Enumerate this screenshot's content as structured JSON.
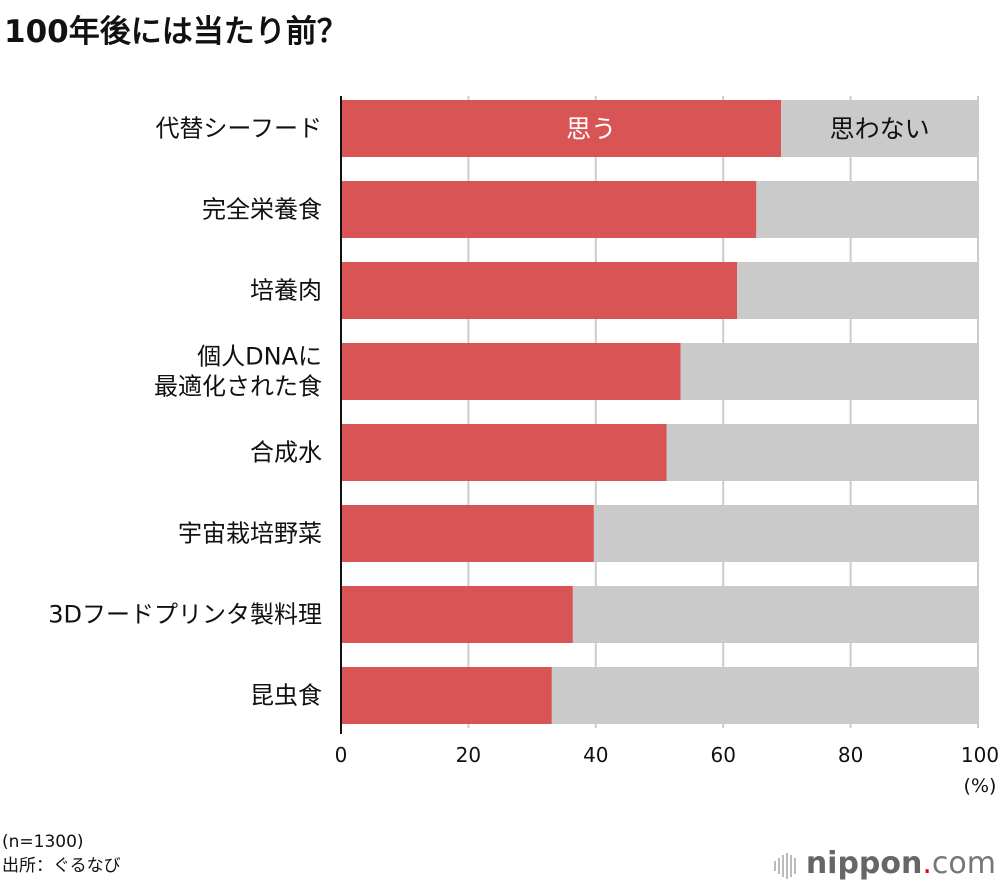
{
  "title": "100年後には当たり前？",
  "chart_data": {
    "type": "bar",
    "orientation": "horizontal",
    "stacked": true,
    "categories": [
      "代替シーフード",
      "完全栄養食",
      "培養肉",
      "個人DNAに\n最適化された食",
      "合成水",
      "宇宙栽培野菜",
      "3Dフードプリンタ製料理",
      "昆虫食"
    ],
    "series": [
      {
        "name": "思う",
        "color": "#d95555",
        "values": [
          69.1,
          65.2,
          62.2,
          53.3,
          51.1,
          39.7,
          36.4,
          33.1
        ]
      },
      {
        "name": "思わない",
        "color": "#cacaca",
        "values": [
          30.9,
          34.8,
          37.8,
          46.7,
          48.9,
          60.3,
          63.6,
          66.9
        ]
      }
    ],
    "xlim": [
      0,
      100
    ],
    "xticks": [
      "0",
      "20",
      "40",
      "60",
      "80",
      "100"
    ],
    "xunit": "(%)",
    "grid": true
  },
  "notes": {
    "sample": "(n=1300)",
    "source": "出所：ぐるなび"
  },
  "logo": {
    "brand": "nippon",
    "dot": ".",
    "tld": "com"
  }
}
